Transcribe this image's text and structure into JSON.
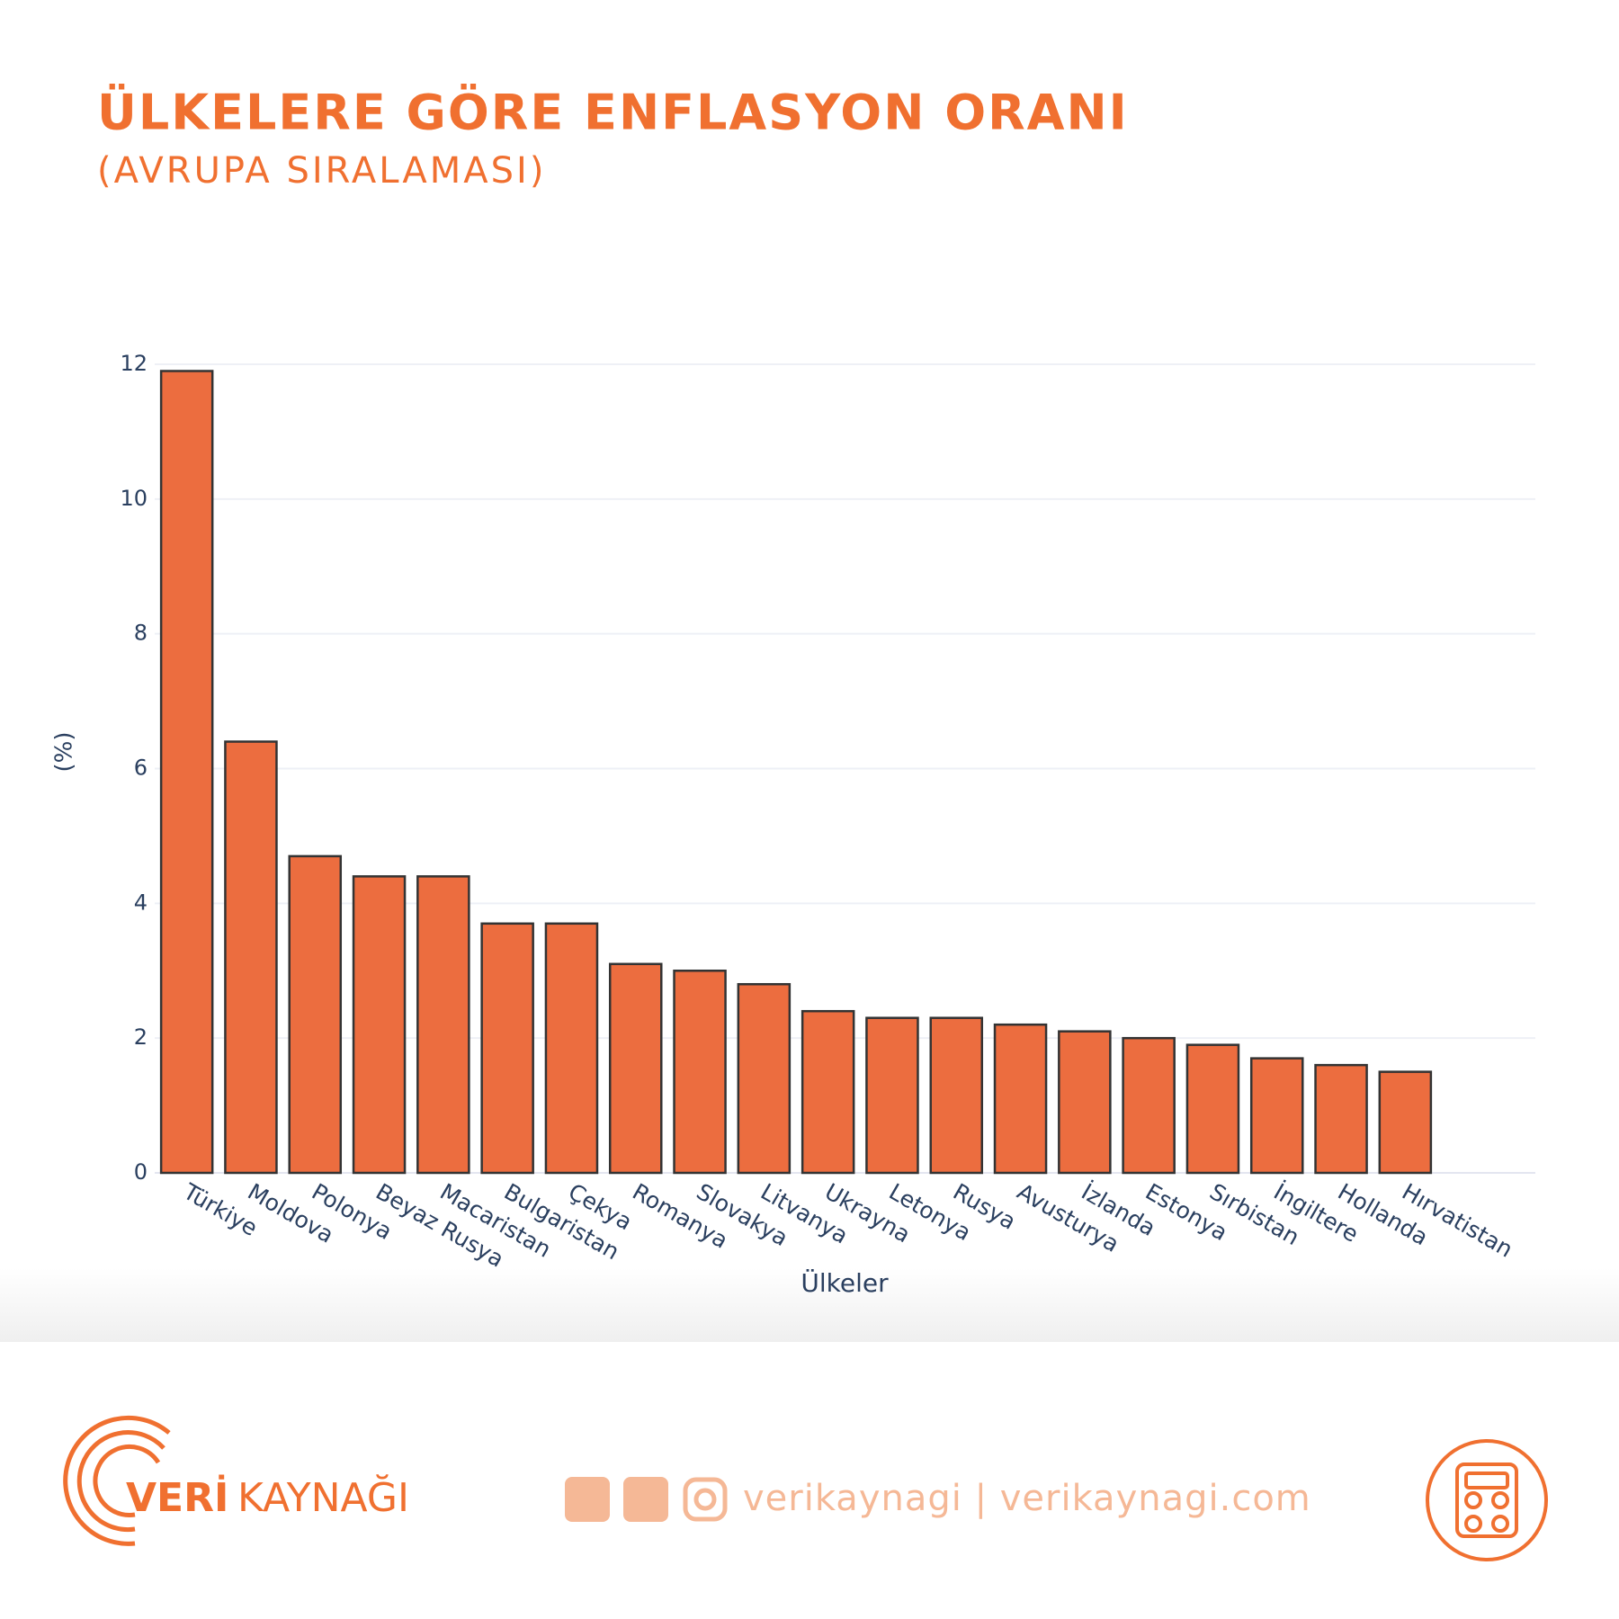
{
  "chart_data": {
    "type": "bar",
    "title": "ÜLKELERE GÖRE ENFLASYON ORANI",
    "subtitle": "(AVRUPA SIRALAMASI)",
    "x_label": "Ülkeler",
    "y_label": "(%)",
    "categories": [
      "Türkiye",
      "Moldova",
      "Polonya",
      "Beyaz Rusya",
      "Macaristan",
      "Bulgaristan",
      "Çekya",
      "Romanya",
      "Slovakya",
      "Litvanya",
      "Ukrayna",
      "Letonya",
      "Rusya",
      "Avusturya",
      "İzlanda",
      "Estonya",
      "Sırbistan",
      "İngiltere",
      "Hollanda",
      "Hırvatistan"
    ],
    "values": [
      11.9,
      6.4,
      4.7,
      4.4,
      4.4,
      3.7,
      3.7,
      3.1,
      3.0,
      2.8,
      2.4,
      2.3,
      2.3,
      2.2,
      2.1,
      2.0,
      1.9,
      1.7,
      1.6,
      1.5
    ],
    "color": "#ec6d3f",
    "ylim": [
      0,
      12
    ],
    "yticks": [
      0,
      2,
      4,
      6,
      8,
      10,
      12
    ],
    "grid": true
  },
  "footer": {
    "brand_bold": "VERİ",
    "brand_light": "KAYNAĞI",
    "social": "verikaynagi | verikaynagi.com"
  }
}
